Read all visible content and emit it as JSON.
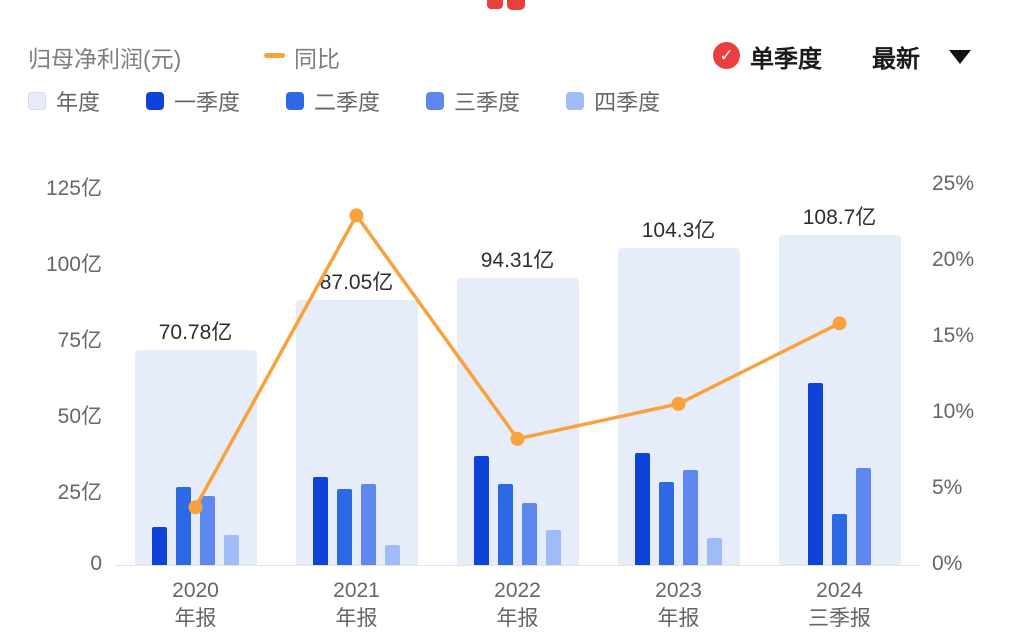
{
  "header": {
    "title": "归母净利润(元)",
    "yoy_label": "同比",
    "quarter_toggle": "单季度",
    "latest_label": "最新",
    "accent_orange": "#F9A23C",
    "accent_red": "#EC3E3E"
  },
  "legend": [
    {
      "key": "annual",
      "label": "年度",
      "color": "#E7ECFA",
      "border": "#D3DCF4"
    },
    {
      "key": "q1",
      "label": "一季度",
      "color": "#0D43D8"
    },
    {
      "key": "q2",
      "label": "二季度",
      "color": "#2D69E4"
    },
    {
      "key": "q3",
      "label": "三季度",
      "color": "#5F88EE"
    },
    {
      "key": "q4",
      "label": "四季度",
      "color": "#9FBCF6"
    }
  ],
  "chart_data": {
    "type": "bar+line",
    "title": "归母净利润(元) 单季度 与 同比",
    "categories": [
      {
        "year": "2020",
        "period": "年报"
      },
      {
        "year": "2021",
        "period": "年报"
      },
      {
        "year": "2022",
        "period": "年报"
      },
      {
        "year": "2023",
        "period": "年报"
      },
      {
        "year": "2024",
        "period": "三季报"
      }
    ],
    "annual_series": {
      "key": "annual",
      "name": "年度",
      "color": "#E7ECFA",
      "values_yi": [
        70.78,
        87.05,
        94.31,
        104.3,
        108.7
      ],
      "labels": [
        "70.78亿",
        "87.05亿",
        "94.31亿",
        "104.3亿",
        "108.7亿"
      ]
    },
    "quarter_series": [
      {
        "key": "q1",
        "name": "一季度",
        "color": "#0D43D8",
        "values_yi": [
          12.5,
          28.8,
          35.8,
          37.0,
          60.0
        ]
      },
      {
        "key": "q2",
        "name": "二季度",
        "color": "#2D69E4",
        "values_yi": [
          25.8,
          25.0,
          26.8,
          27.2,
          16.7
        ]
      },
      {
        "key": "q3",
        "name": "三季度",
        "color": "#5F88EE",
        "values_yi": [
          22.7,
          26.8,
          20.3,
          31.3,
          32.0
        ]
      },
      {
        "key": "q4",
        "name": "四季度",
        "color": "#9FBCF6",
        "values_yi": [
          9.8,
          6.5,
          11.4,
          8.8,
          null
        ]
      }
    ],
    "line_series": {
      "name": "同比",
      "color": "#F9A23C",
      "values_pct": [
        3.8,
        23.0,
        8.3,
        10.6,
        15.9
      ]
    },
    "left_axis": {
      "unit": "亿",
      "ticks": [
        "0",
        "25亿",
        "50亿",
        "75亿",
        "100亿",
        "125亿"
      ],
      "min": 0,
      "max": 125
    },
    "right_axis": {
      "unit": "%",
      "ticks": [
        "0%",
        "5%",
        "10%",
        "15%",
        "20%",
        "25%"
      ],
      "min": 0,
      "max": 25
    },
    "layout": {
      "grid": false,
      "legend_position": "top-left"
    }
  }
}
